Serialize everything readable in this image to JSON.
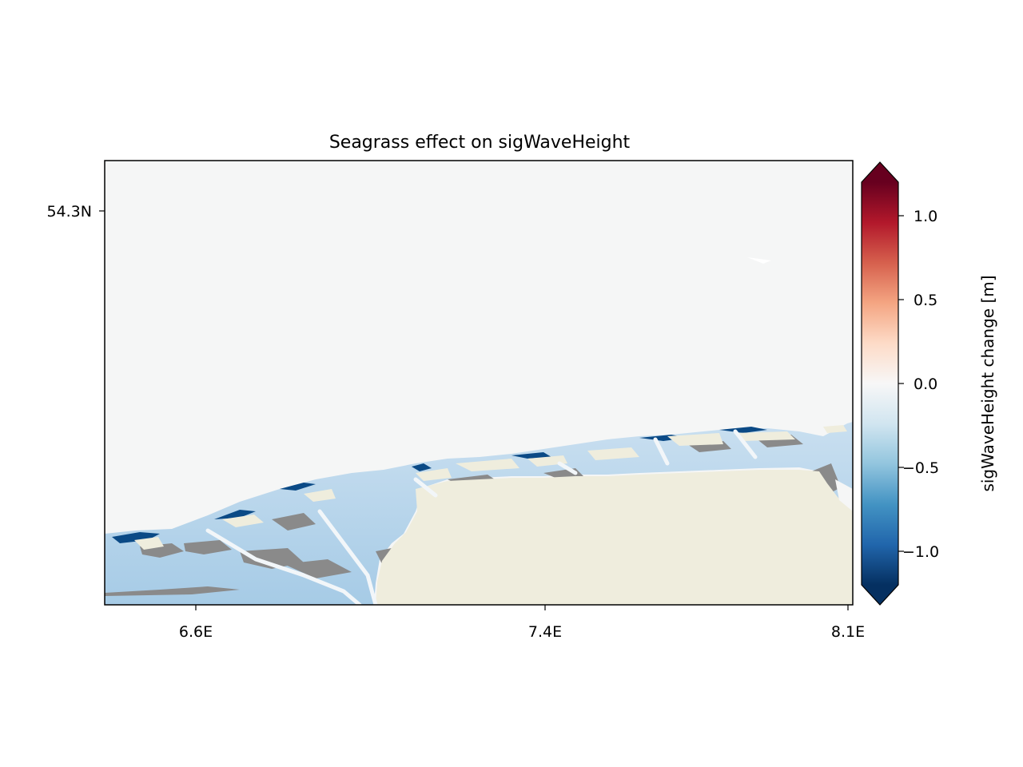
{
  "figure": {
    "title": "Seagrass effect on sigWaveHeight",
    "map": {
      "x_ticks": [
        "6.6E",
        "7.4E",
        "8.1E"
      ],
      "y_ticks": [
        "54.3N"
      ],
      "colors": {
        "ocean_nochange": "#f5f6f6",
        "land": "#efeddd",
        "drypatch": "#8a8a8a"
      }
    },
    "colorbar": {
      "label": "sigWaveHeight change [m]",
      "ticks": [
        "1.0",
        "0.5",
        "0.0",
        "−0.5",
        "−1.0"
      ],
      "tick_values": [
        1.0,
        0.5,
        0.0,
        -0.5,
        -1.0
      ],
      "range": [
        -1.25,
        1.25
      ],
      "extend": "both",
      "colormap": "RdBu_r",
      "colors": [
        "#053061",
        "#2166ac",
        "#4393c3",
        "#92c5de",
        "#d1e5f0",
        "#f7f7f7",
        "#fddbc7",
        "#f4a582",
        "#d6604d",
        "#b2182b",
        "#67001f"
      ]
    }
  }
}
